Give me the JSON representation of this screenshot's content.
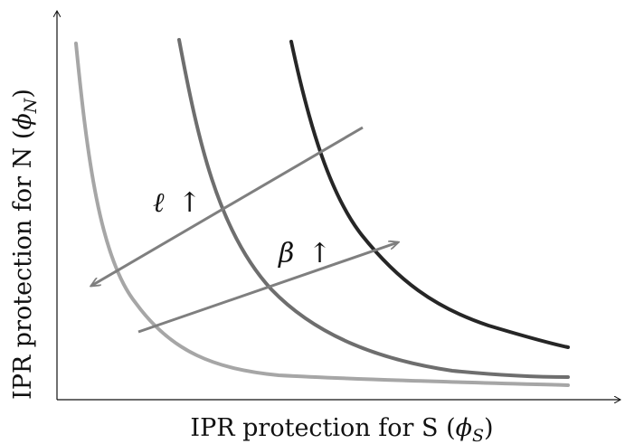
{
  "diagram": {
    "type": "line",
    "xlabel": "IPR protection for S (ϕ_S)",
    "ylabel": "IPR protection for N (ϕ_N)",
    "x_axis": {
      "label_main": "IPR protection for S (",
      "label_symbol": "ϕ",
      "label_sub": "S",
      "label_close": ")"
    },
    "y_axis": {
      "label_main": "IPR protection for N (",
      "label_symbol": "ϕ",
      "label_sub": "N",
      "label_close": ")"
    },
    "annotations": [
      {
        "id": "ell",
        "symbol": "ℓ",
        "arrow": "↑"
      },
      {
        "id": "beta",
        "symbol": "β",
        "arrow": "↑"
      }
    ],
    "curves": [
      {
        "id": "light",
        "color": "#a6a6a6"
      },
      {
        "id": "medium",
        "color": "#6e6e6e"
      },
      {
        "id": "dark",
        "color": "#262626"
      }
    ],
    "arrow_color": "#7f7f7f"
  }
}
